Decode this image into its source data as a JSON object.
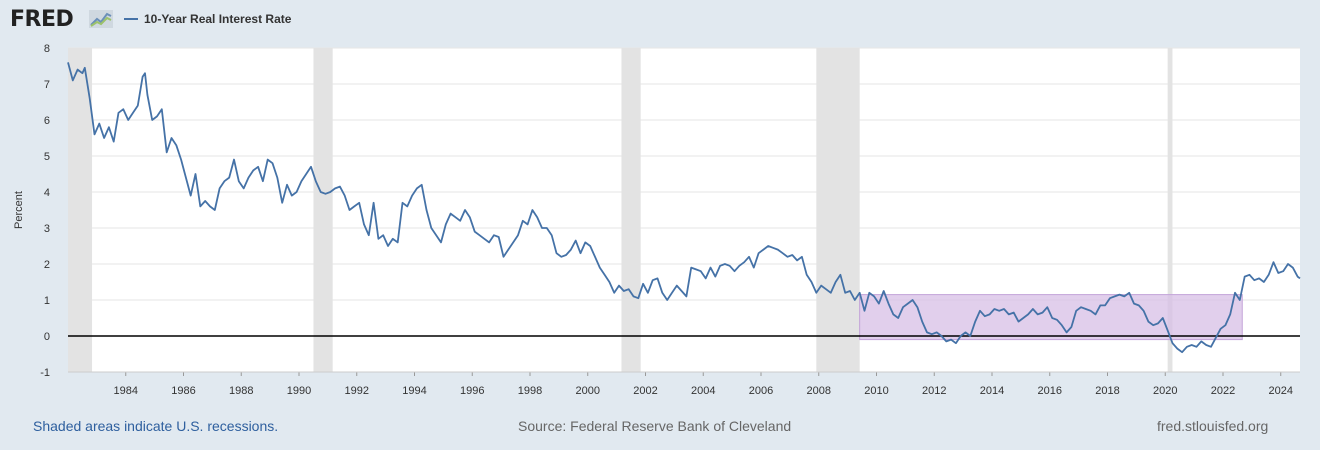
{
  "header": {
    "logo_text": "FRED",
    "logo_icon": "chart-line-icon",
    "legend_label": "10-Year Real Interest Rate",
    "legend_color": "#4572a7"
  },
  "footer": {
    "recession_note": "Shaded areas indicate U.S. recessions.",
    "source": "Source: Federal Reserve Bank of Cleveland",
    "site": "fred.stlouisfed.org"
  },
  "chart_data": {
    "type": "line",
    "title": "",
    "xlabel": "",
    "ylabel": "Percent",
    "ylim": [
      -1,
      8
    ],
    "xlim": [
      "1982-01",
      "2024-09"
    ],
    "y_ticks": [
      "8",
      "7",
      "6",
      "5",
      "4",
      "3",
      "2",
      "1",
      "0",
      "-1"
    ],
    "x_ticks": [
      "1984",
      "1986",
      "1988",
      "1990",
      "1992",
      "1994",
      "1996",
      "1998",
      "2000",
      "2002",
      "2004",
      "2006",
      "2008",
      "2010",
      "2012",
      "2014",
      "2016",
      "2018",
      "2020",
      "2022",
      "2024"
    ],
    "grid": true,
    "zero_line": true,
    "recessions": [
      [
        "1982-01",
        "1982-11"
      ],
      [
        "1990-07",
        "1991-03"
      ],
      [
        "2001-03",
        "2001-11"
      ],
      [
        "2007-12",
        "2009-06"
      ],
      [
        "2020-02",
        "2020-04"
      ]
    ],
    "highlight_region": {
      "x": [
        "2009-06",
        "2022-09"
      ],
      "y": [
        -0.1,
        1.15
      ],
      "color": "#d7bfe6"
    },
    "series": [
      {
        "color": "#4572a7",
        "points": [
          [
            "1982-01",
            7.6
          ],
          [
            "1982-03",
            7.1
          ],
          [
            "1982-05",
            7.4
          ],
          [
            "1982-07",
            7.3
          ],
          [
            "1982-08",
            7.45
          ],
          [
            "1982-10",
            6.6
          ],
          [
            "1982-12",
            5.6
          ],
          [
            "1983-02",
            5.9
          ],
          [
            "1983-04",
            5.5
          ],
          [
            "1983-06",
            5.8
          ],
          [
            "1983-08",
            5.4
          ],
          [
            "1983-10",
            6.2
          ],
          [
            "1983-12",
            6.3
          ],
          [
            "1984-02",
            6.0
          ],
          [
            "1984-04",
            6.2
          ],
          [
            "1984-06",
            6.4
          ],
          [
            "1984-08",
            7.2
          ],
          [
            "1984-09",
            7.3
          ],
          [
            "1984-10",
            6.7
          ],
          [
            "1984-12",
            6.0
          ],
          [
            "1985-02",
            6.1
          ],
          [
            "1985-04",
            6.3
          ],
          [
            "1985-06",
            5.1
          ],
          [
            "1985-08",
            5.5
          ],
          [
            "1985-10",
            5.3
          ],
          [
            "1985-12",
            4.9
          ],
          [
            "1986-02",
            4.4
          ],
          [
            "1986-04",
            3.9
          ],
          [
            "1986-06",
            4.5
          ],
          [
            "1986-08",
            3.6
          ],
          [
            "1986-10",
            3.75
          ],
          [
            "1986-12",
            3.6
          ],
          [
            "1987-02",
            3.5
          ],
          [
            "1987-04",
            4.1
          ],
          [
            "1987-06",
            4.3
          ],
          [
            "1987-08",
            4.4
          ],
          [
            "1987-10",
            4.9
          ],
          [
            "1987-12",
            4.3
          ],
          [
            "1988-02",
            4.1
          ],
          [
            "1988-04",
            4.4
          ],
          [
            "1988-06",
            4.6
          ],
          [
            "1988-08",
            4.7
          ],
          [
            "1988-10",
            4.3
          ],
          [
            "1988-12",
            4.9
          ],
          [
            "1989-02",
            4.8
          ],
          [
            "1989-04",
            4.4
          ],
          [
            "1989-06",
            3.7
          ],
          [
            "1989-08",
            4.2
          ],
          [
            "1989-10",
            3.9
          ],
          [
            "1989-12",
            4.0
          ],
          [
            "1990-02",
            4.3
          ],
          [
            "1990-04",
            4.5
          ],
          [
            "1990-06",
            4.7
          ],
          [
            "1990-08",
            4.3
          ],
          [
            "1990-10",
            4.0
          ],
          [
            "1990-12",
            3.95
          ],
          [
            "1991-02",
            4.0
          ],
          [
            "1991-04",
            4.1
          ],
          [
            "1991-06",
            4.15
          ],
          [
            "1991-08",
            3.9
          ],
          [
            "1991-10",
            3.5
          ],
          [
            "1991-12",
            3.6
          ],
          [
            "1992-02",
            3.7
          ],
          [
            "1992-04",
            3.1
          ],
          [
            "1992-06",
            2.8
          ],
          [
            "1992-08",
            3.7
          ],
          [
            "1992-10",
            2.7
          ],
          [
            "1992-12",
            2.8
          ],
          [
            "1993-02",
            2.5
          ],
          [
            "1993-04",
            2.7
          ],
          [
            "1993-06",
            2.6
          ],
          [
            "1993-08",
            3.7
          ],
          [
            "1993-10",
            3.6
          ],
          [
            "1993-12",
            3.9
          ],
          [
            "1994-02",
            4.1
          ],
          [
            "1994-04",
            4.2
          ],
          [
            "1994-06",
            3.5
          ],
          [
            "1994-08",
            3.0
          ],
          [
            "1994-10",
            2.8
          ],
          [
            "1994-12",
            2.6
          ],
          [
            "1995-02",
            3.1
          ],
          [
            "1995-04",
            3.4
          ],
          [
            "1995-06",
            3.3
          ],
          [
            "1995-08",
            3.2
          ],
          [
            "1995-10",
            3.5
          ],
          [
            "1995-12",
            3.3
          ],
          [
            "1996-02",
            2.9
          ],
          [
            "1996-04",
            2.8
          ],
          [
            "1996-06",
            2.7
          ],
          [
            "1996-08",
            2.6
          ],
          [
            "1996-10",
            2.8
          ],
          [
            "1996-12",
            2.75
          ],
          [
            "1997-02",
            2.2
          ],
          [
            "1997-04",
            2.4
          ],
          [
            "1997-06",
            2.6
          ],
          [
            "1997-08",
            2.8
          ],
          [
            "1997-10",
            3.2
          ],
          [
            "1997-12",
            3.1
          ],
          [
            "1998-02",
            3.5
          ],
          [
            "1998-04",
            3.3
          ],
          [
            "1998-06",
            3.0
          ],
          [
            "1998-08",
            3.0
          ],
          [
            "1998-10",
            2.8
          ],
          [
            "1998-12",
            2.3
          ],
          [
            "1999-02",
            2.2
          ],
          [
            "1999-04",
            2.25
          ],
          [
            "1999-06",
            2.4
          ],
          [
            "1999-08",
            2.65
          ],
          [
            "1999-10",
            2.3
          ],
          [
            "1999-12",
            2.6
          ],
          [
            "2000-02",
            2.5
          ],
          [
            "2000-04",
            2.2
          ],
          [
            "2000-06",
            1.9
          ],
          [
            "2000-08",
            1.7
          ],
          [
            "2000-10",
            1.5
          ],
          [
            "2000-12",
            1.2
          ],
          [
            "2001-02",
            1.4
          ],
          [
            "2001-04",
            1.25
          ],
          [
            "2001-06",
            1.3
          ],
          [
            "2001-08",
            1.1
          ],
          [
            "2001-10",
            1.05
          ],
          [
            "2001-12",
            1.45
          ],
          [
            "2002-02",
            1.2
          ],
          [
            "2002-04",
            1.55
          ],
          [
            "2002-06",
            1.6
          ],
          [
            "2002-08",
            1.2
          ],
          [
            "2002-10",
            1.0
          ],
          [
            "2002-12",
            1.2
          ],
          [
            "2003-02",
            1.4
          ],
          [
            "2003-04",
            1.25
          ],
          [
            "2003-06",
            1.1
          ],
          [
            "2003-08",
            1.9
          ],
          [
            "2003-10",
            1.85
          ],
          [
            "2003-12",
            1.8
          ],
          [
            "2004-02",
            1.6
          ],
          [
            "2004-04",
            1.9
          ],
          [
            "2004-06",
            1.65
          ],
          [
            "2004-08",
            1.95
          ],
          [
            "2004-10",
            2.0
          ],
          [
            "2004-12",
            1.95
          ],
          [
            "2005-02",
            1.8
          ],
          [
            "2005-04",
            1.95
          ],
          [
            "2005-06",
            2.05
          ],
          [
            "2005-08",
            2.2
          ],
          [
            "2005-10",
            1.9
          ],
          [
            "2005-12",
            2.3
          ],
          [
            "2006-02",
            2.4
          ],
          [
            "2006-04",
            2.5
          ],
          [
            "2006-06",
            2.45
          ],
          [
            "2006-08",
            2.4
          ],
          [
            "2006-10",
            2.3
          ],
          [
            "2006-12",
            2.2
          ],
          [
            "2007-02",
            2.25
          ],
          [
            "2007-04",
            2.1
          ],
          [
            "2007-06",
            2.2
          ],
          [
            "2007-08",
            1.7
          ],
          [
            "2007-10",
            1.5
          ],
          [
            "2007-12",
            1.2
          ],
          [
            "2008-02",
            1.4
          ],
          [
            "2008-04",
            1.3
          ],
          [
            "2008-06",
            1.2
          ],
          [
            "2008-08",
            1.5
          ],
          [
            "2008-10",
            1.7
          ],
          [
            "2008-12",
            1.2
          ],
          [
            "2009-02",
            1.25
          ],
          [
            "2009-04",
            1.0
          ],
          [
            "2009-06",
            1.2
          ],
          [
            "2009-08",
            0.7
          ],
          [
            "2009-10",
            1.2
          ],
          [
            "2009-12",
            1.1
          ],
          [
            "2010-02",
            0.9
          ],
          [
            "2010-04",
            1.25
          ],
          [
            "2010-06",
            0.9
          ],
          [
            "2010-08",
            0.6
          ],
          [
            "2010-10",
            0.5
          ],
          [
            "2010-12",
            0.8
          ],
          [
            "2011-02",
            0.9
          ],
          [
            "2011-04",
            1.0
          ],
          [
            "2011-06",
            0.8
          ],
          [
            "2011-08",
            0.4
          ],
          [
            "2011-10",
            0.1
          ],
          [
            "2011-12",
            0.05
          ],
          [
            "2012-02",
            0.1
          ],
          [
            "2012-04",
            0.0
          ],
          [
            "2012-06",
            -0.15
          ],
          [
            "2012-08",
            -0.1
          ],
          [
            "2012-10",
            -0.2
          ],
          [
            "2012-12",
            0.0
          ],
          [
            "2013-02",
            0.1
          ],
          [
            "2013-04",
            0.0
          ],
          [
            "2013-06",
            0.4
          ],
          [
            "2013-08",
            0.7
          ],
          [
            "2013-10",
            0.55
          ],
          [
            "2013-12",
            0.6
          ],
          [
            "2014-02",
            0.75
          ],
          [
            "2014-04",
            0.7
          ],
          [
            "2014-06",
            0.75
          ],
          [
            "2014-08",
            0.6
          ],
          [
            "2014-10",
            0.65
          ],
          [
            "2014-12",
            0.4
          ],
          [
            "2015-02",
            0.5
          ],
          [
            "2015-04",
            0.6
          ],
          [
            "2015-06",
            0.75
          ],
          [
            "2015-08",
            0.6
          ],
          [
            "2015-10",
            0.65
          ],
          [
            "2015-12",
            0.8
          ],
          [
            "2016-02",
            0.5
          ],
          [
            "2016-04",
            0.45
          ],
          [
            "2016-06",
            0.3
          ],
          [
            "2016-08",
            0.1
          ],
          [
            "2016-10",
            0.25
          ],
          [
            "2016-12",
            0.7
          ],
          [
            "2017-02",
            0.8
          ],
          [
            "2017-04",
            0.75
          ],
          [
            "2017-06",
            0.7
          ],
          [
            "2017-08",
            0.6
          ],
          [
            "2017-10",
            0.85
          ],
          [
            "2017-12",
            0.85
          ],
          [
            "2018-02",
            1.05
          ],
          [
            "2018-04",
            1.1
          ],
          [
            "2018-06",
            1.15
          ],
          [
            "2018-08",
            1.1
          ],
          [
            "2018-10",
            1.2
          ],
          [
            "2018-12",
            0.9
          ],
          [
            "2019-02",
            0.85
          ],
          [
            "2019-04",
            0.7
          ],
          [
            "2019-06",
            0.4
          ],
          [
            "2019-08",
            0.3
          ],
          [
            "2019-10",
            0.35
          ],
          [
            "2019-12",
            0.5
          ],
          [
            "2020-02",
            0.15
          ],
          [
            "2020-04",
            -0.2
          ],
          [
            "2020-06",
            -0.35
          ],
          [
            "2020-08",
            -0.45
          ],
          [
            "2020-10",
            -0.3
          ],
          [
            "2020-12",
            -0.25
          ],
          [
            "2021-02",
            -0.3
          ],
          [
            "2021-04",
            -0.15
          ],
          [
            "2021-06",
            -0.25
          ],
          [
            "2021-08",
            -0.3
          ],
          [
            "2021-10",
            -0.05
          ],
          [
            "2021-12",
            0.2
          ],
          [
            "2022-02",
            0.3
          ],
          [
            "2022-04",
            0.6
          ],
          [
            "2022-06",
            1.2
          ],
          [
            "2022-08",
            1.0
          ],
          [
            "2022-10",
            1.65
          ],
          [
            "2022-12",
            1.7
          ],
          [
            "2023-02",
            1.55
          ],
          [
            "2023-04",
            1.6
          ],
          [
            "2023-06",
            1.5
          ],
          [
            "2023-08",
            1.7
          ],
          [
            "2023-10",
            2.05
          ],
          [
            "2023-12",
            1.75
          ],
          [
            "2024-02",
            1.8
          ],
          [
            "2024-04",
            2.0
          ],
          [
            "2024-06",
            1.9
          ],
          [
            "2024-08",
            1.65
          ],
          [
            "2024-09",
            1.6
          ]
        ]
      }
    ]
  }
}
